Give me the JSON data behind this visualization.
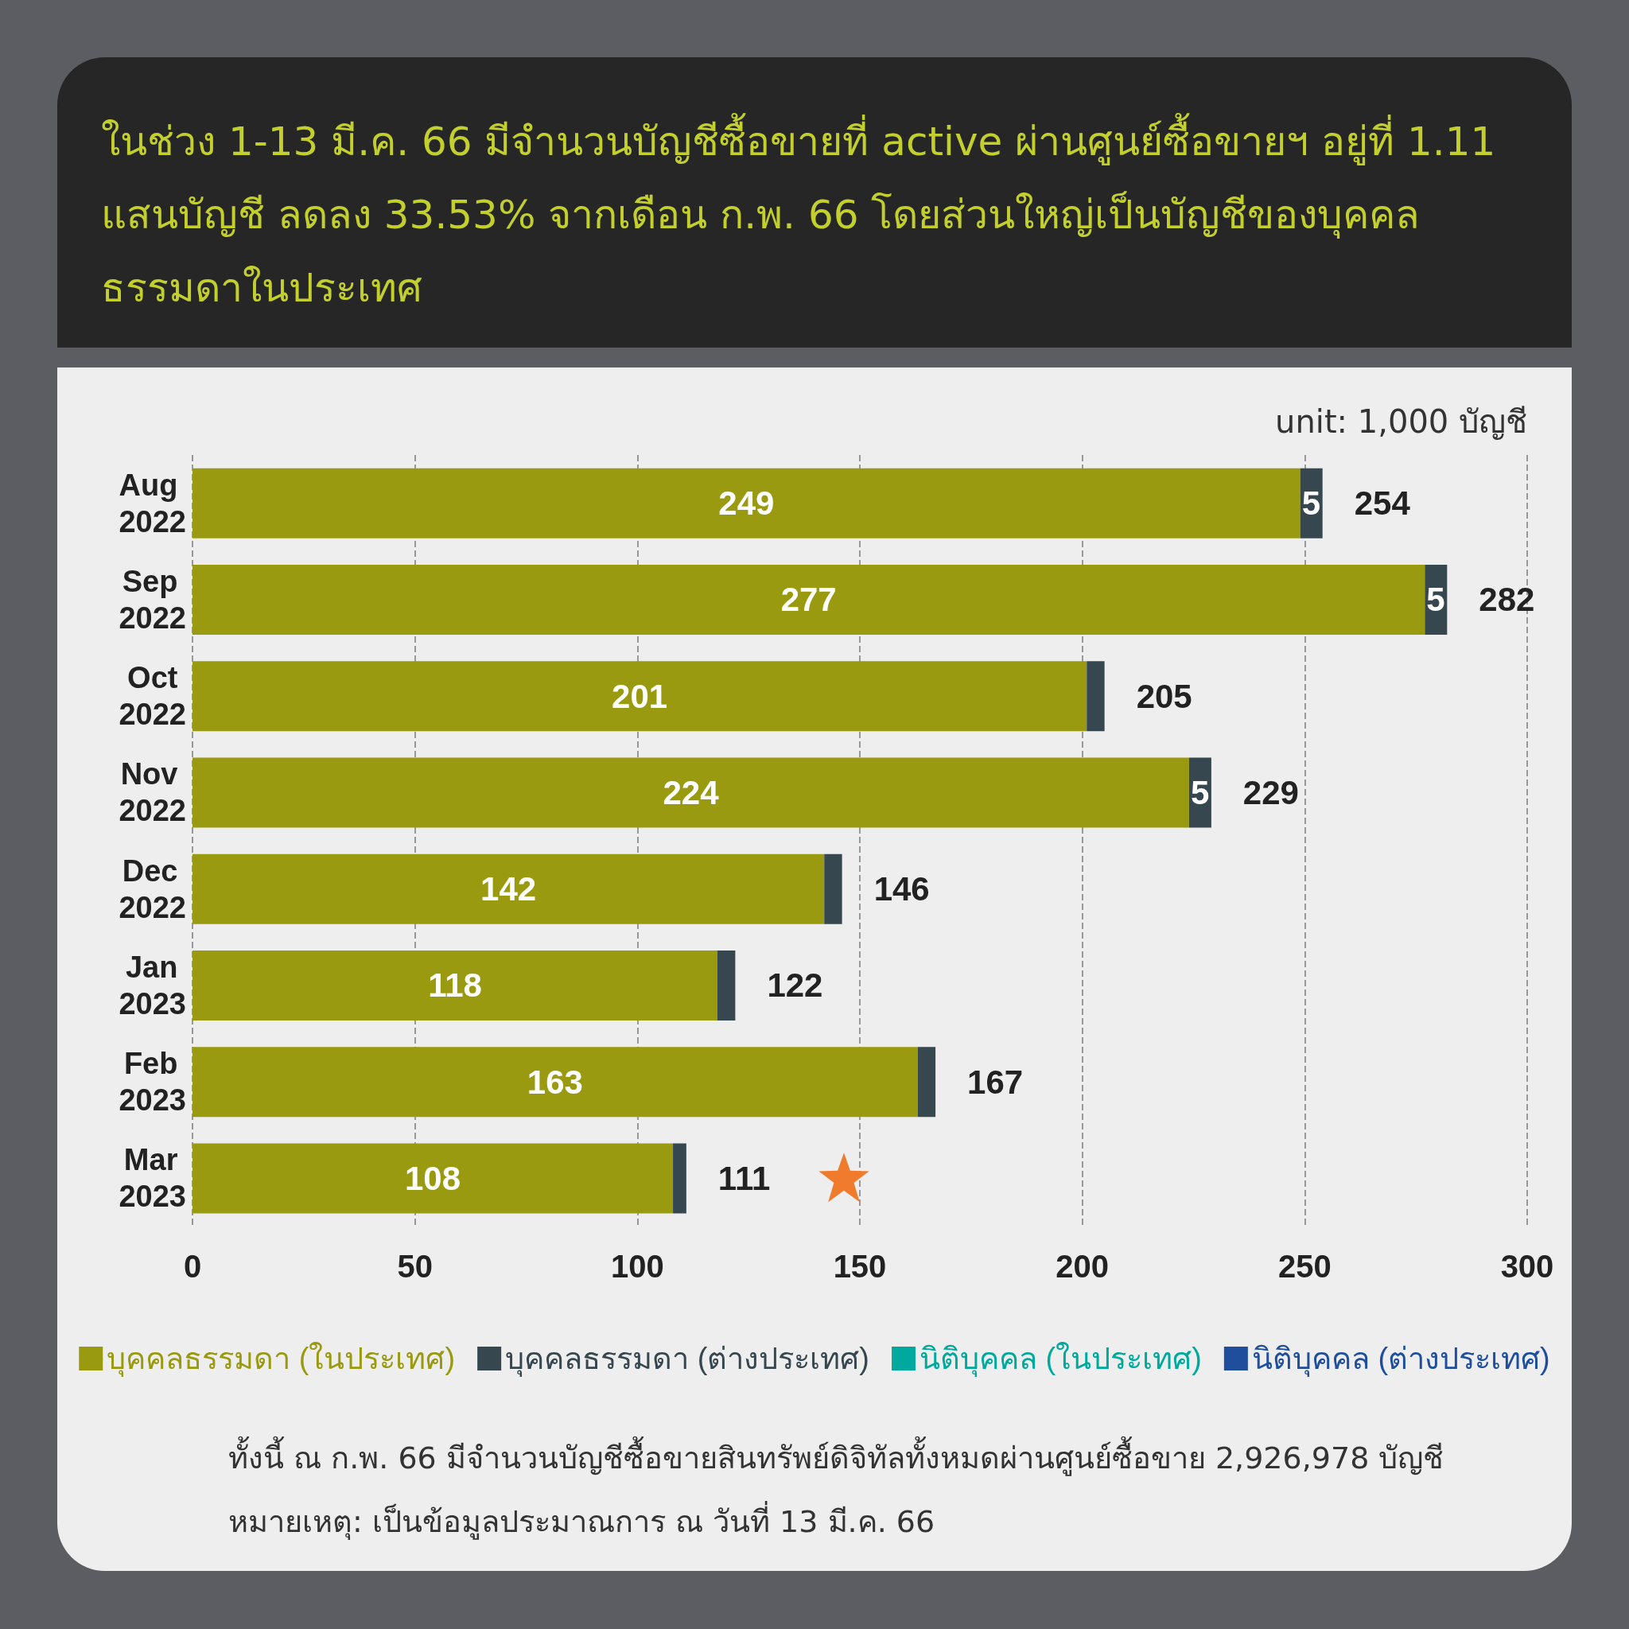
{
  "chart_data": {
    "type": "bar",
    "orientation": "horizontal",
    "stacked": true,
    "title": "ในช่วง 1-13 มี.ค. 66 มีจำนวนบัญชีซื้อขายที่ active ผ่านศูนย์ซื้อขายฯ อยู่ที่ 1.11 แสนบัญชี ลดลง 33.53% จากเดือน ก.พ. 66 โดยส่วนใหญ่เป็นบัญชีของบุคคลธรรมดาในประเทศ",
    "categories": [
      "Aug 2022",
      "Sep 2022",
      "Oct 2022",
      "Nov 2022",
      "Dec 2022",
      "Jan 2023",
      "Feb 2023",
      "Mar 2023"
    ],
    "series": [
      {
        "name": "บุคคลธรรมดา (ในประเทศ)",
        "color": "#999a10",
        "values": [
          249,
          277,
          201,
          224,
          142,
          118,
          163,
          108
        ],
        "value_labels": [
          "249",
          "277",
          "201",
          "224",
          "142",
          "118",
          "163",
          "108"
        ]
      },
      {
        "name": "บุคคลธรรมดา (ต่างประเทศ)",
        "color": "#37474f",
        "values": [
          5,
          5,
          4,
          5,
          4,
          4,
          4,
          3
        ],
        "value_labels": [
          "5",
          "5",
          null,
          "5",
          null,
          null,
          null,
          null
        ]
      },
      {
        "name": "นิติบุคคล (ในประเทศ)",
        "color": "#00a99d",
        "values": [
          0,
          0,
          0,
          0,
          0,
          0,
          0,
          0
        ]
      },
      {
        "name": "นิติบุคคล (ต่างประเทศ)",
        "color": "#1f4e9c",
        "values": [
          0,
          0,
          0,
          0,
          0,
          0,
          0,
          0
        ]
      }
    ],
    "totals": [
      "254",
      "282",
      "205",
      "229",
      "146",
      "122",
      "167",
      "111"
    ],
    "xlim": [
      0,
      300
    ],
    "xticks": [
      0,
      50,
      100,
      150,
      200,
      250,
      300
    ],
    "grid": "x",
    "legend": "bottom",
    "annotations": [
      "unit: 1,000 บัญชี",
      "ทั้งนี้ ณ ก.พ. 66 มีจำนวนบัญชีซื้อขายสินทรัพย์ดิจิทัลทั้งหมดผ่านศูนย์ซื้อขาย 2,926,978 บัญชี",
      "หมายเหตุ: เป็นข้อมูลประมาณการ ณ วันที่ 13 มี.ค. 66"
    ]
  }
}
